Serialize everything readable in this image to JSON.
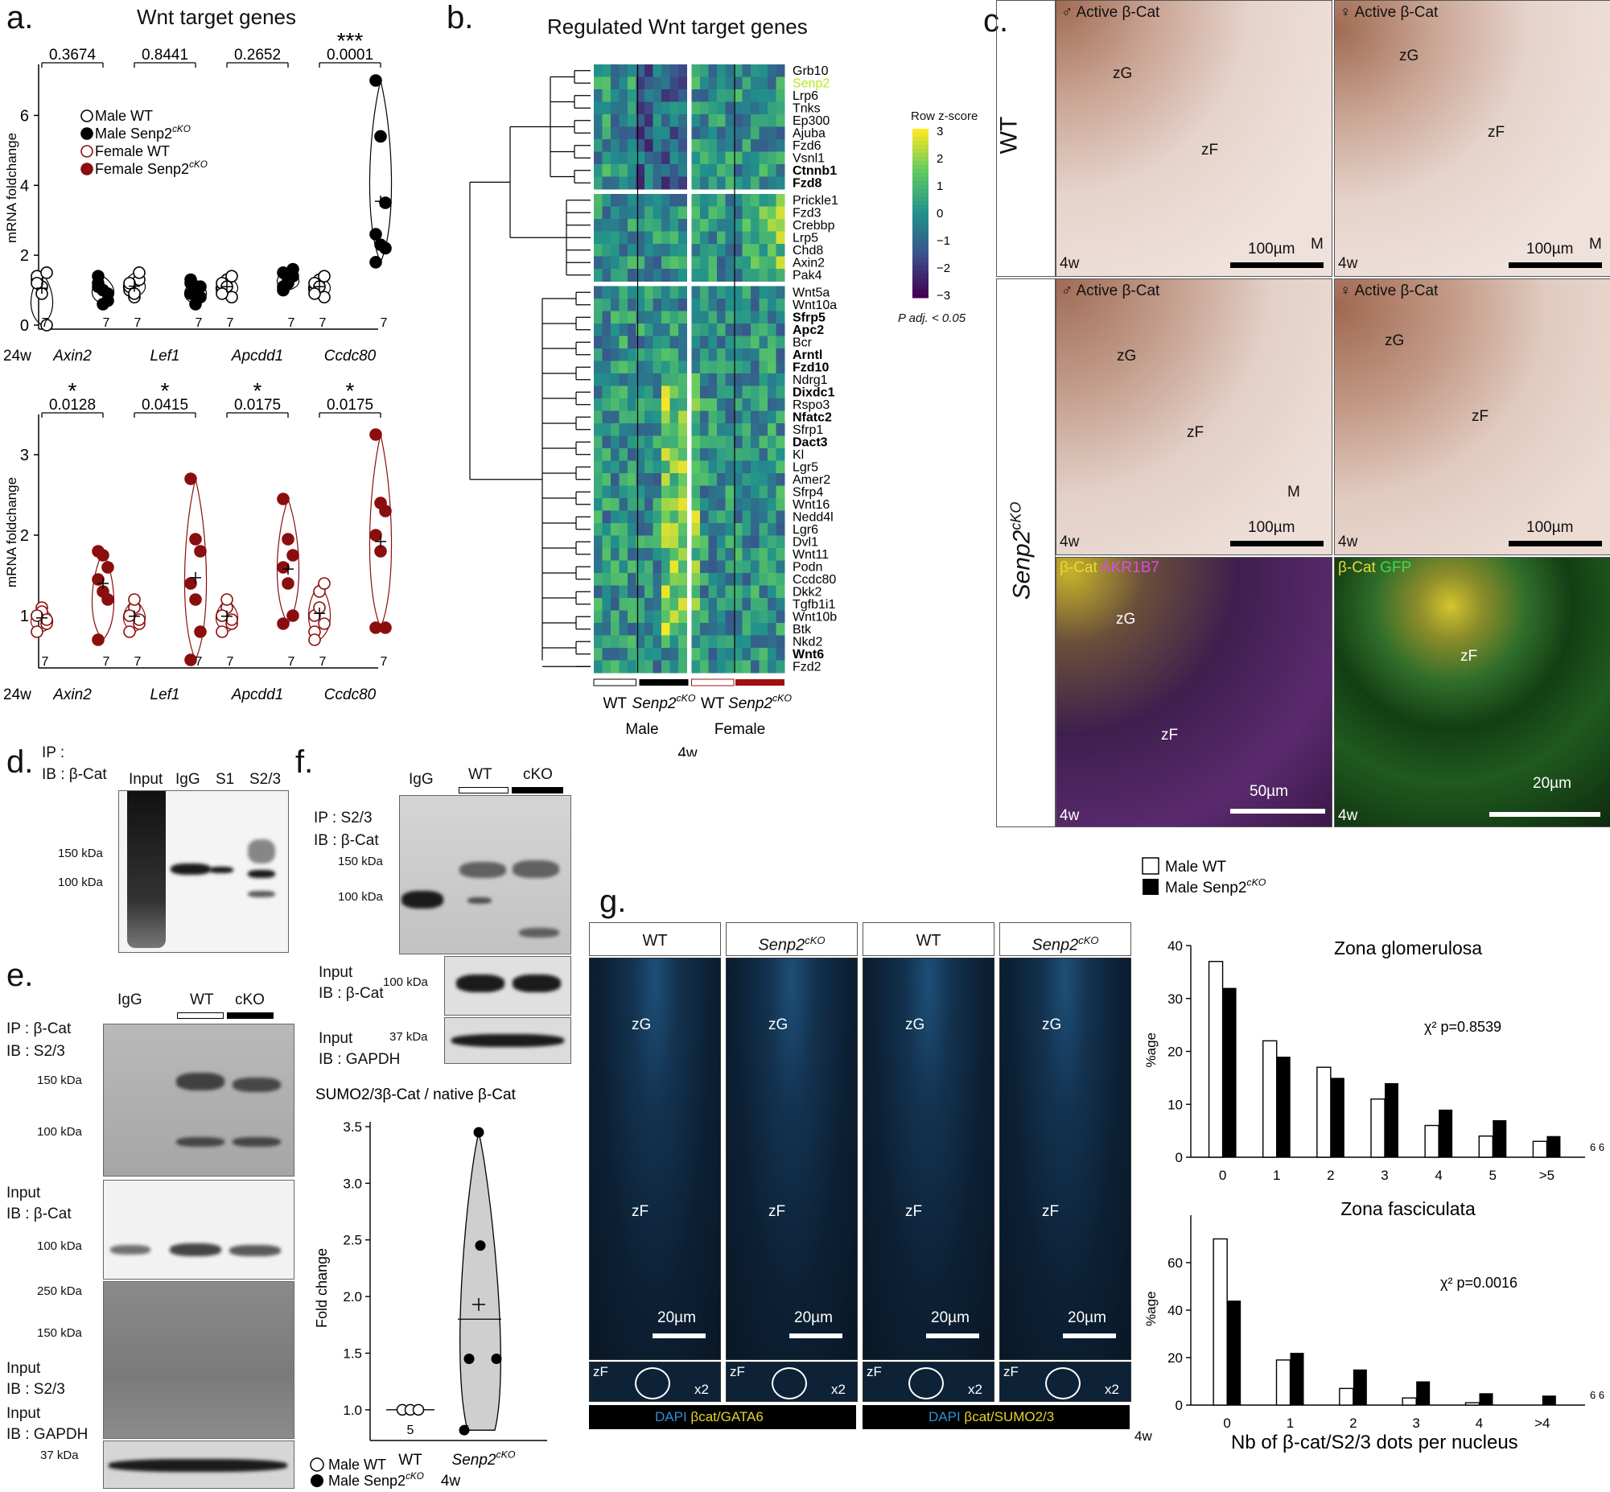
{
  "panel_labels": {
    "a": "a.",
    "b": "b.",
    "c": "c.",
    "d": "d.",
    "e": "e.",
    "f": "f.",
    "g": "g."
  },
  "panel_a": {
    "title": "Wnt target genes",
    "ylabel": "mRNA foldchange",
    "age": "24w",
    "legend": [
      "Male WT",
      "Male Senp2cKO",
      "Female WT",
      "Female Senp2cKO"
    ],
    "legend_main": [
      "Male WT",
      "Male Senp2",
      "Female WT",
      "Female Senp2"
    ],
    "legend_sup": [
      "",
      "cKO",
      "",
      "cKO"
    ],
    "genes": [
      "Axin2",
      "Lef1",
      "Apcdd1",
      "Ccdc80"
    ],
    "n": "7",
    "colors": {
      "male": "#000000",
      "female": "#8b0e0e"
    },
    "chart_data": [
      {
        "type": "scatter",
        "title": "Wnt target genes",
        "ylabel": "mRNA foldchange",
        "ylim": [
          0,
          7
        ],
        "yticks": [
          0,
          2,
          4,
          6
        ],
        "categories": [
          "Axin2",
          "Lef1",
          "Apcdd1",
          "Ccdc80"
        ],
        "pvalues": [
          "0.3674",
          "0.8441",
          "0.2652",
          "0.0001"
        ],
        "stars": [
          "",
          "",
          "",
          "***"
        ],
        "series": [
          {
            "name": "Male WT",
            "values": [
              [
                1.3,
                1.1,
                0.0,
                1.4,
                0.9,
                1.5,
                1.2
              ],
              [
                1.0,
                0.8,
                1.3,
                1.1,
                0.9,
                1.5,
                1.2
              ],
              [
                1.0,
                1.3,
                0.8,
                1.2,
                1.1,
                1.4,
                0.9
              ],
              [
                1.0,
                1.3,
                0.8,
                1.2,
                1.1,
                1.4,
                0.9
              ]
            ]
          },
          {
            "name": "Male Senp2cKO",
            "values": [
              [
                1.4,
                1.0,
                0.7,
                1.2,
                0.6,
                0.9,
                1.1
              ],
              [
                1.2,
                1.0,
                0.8,
                1.3,
                0.6,
                1.1,
                0.9
              ],
              [
                1.5,
                1.3,
                1.6,
                1.1,
                1.2,
                1.4,
                1.0
              ],
              [
                7.0,
                5.4,
                3.5,
                2.6,
                2.3,
                2.2,
                1.8
              ]
            ]
          }
        ]
      },
      {
        "type": "scatter",
        "ylabel": "mRNA foldchange",
        "ylim": [
          0.4,
          3.3
        ],
        "yticks": [
          1,
          2,
          3
        ],
        "categories": [
          "Axin2",
          "Lef1",
          "Apcdd1",
          "Ccdc80"
        ],
        "pvalues": [
          "0.0128",
          "0.0415",
          "0.0175",
          "0.0175"
        ],
        "stars": [
          "*",
          "*",
          "*",
          "*"
        ],
        "series": [
          {
            "name": "Female WT",
            "values": [
              [
                1.0,
                1.1,
                0.9,
                0.8,
                1.05,
                0.95,
                1.0
              ],
              [
                1.0,
                1.1,
                0.9,
                0.8,
                1.2,
                0.95,
                1.0
              ],
              [
                1.0,
                1.1,
                0.9,
                0.8,
                1.2,
                0.95,
                1.0
              ],
              [
                1.0,
                1.3,
                0.9,
                0.8,
                1.1,
                1.4,
                0.7
              ]
            ]
          },
          {
            "name": "Female Senp2cKO",
            "values": [
              [
                1.8,
                1.75,
                1.6,
                1.45,
                1.3,
                1.2,
                0.7
              ],
              [
                2.7,
                1.95,
                1.8,
                1.4,
                1.2,
                0.8,
                0.45
              ],
              [
                2.45,
                1.95,
                1.75,
                1.6,
                1.4,
                1.0,
                0.9
              ],
              [
                3.25,
                2.4,
                2.3,
                2.0,
                1.8,
                0.85,
                0.85
              ]
            ]
          }
        ]
      }
    ]
  },
  "panel_b": {
    "title": "Regulated Wnt target genes",
    "colorbar_title": "Row z-score",
    "colorbar_ticks": [
      "3",
      "2",
      "1",
      "0",
      "−1",
      "−2",
      "−3"
    ],
    "padj": "P adj. < 0.05",
    "genes": [
      "Grb10",
      "Senp2",
      "Lrp6",
      "Tnks",
      "Ep300",
      "Ajuba",
      "Fzd6",
      "Vsnl1",
      "Ctnnb1",
      "Fzd8",
      "Prickle1",
      "Fzd3",
      "Crebbp",
      "Lrp5",
      "Chd8",
      "Axin2",
      "Pak4",
      "Wnt5a",
      "Wnt10a",
      "Sfrp5",
      "Apc2",
      "Bcr",
      "Arntl",
      "Fzd10",
      "Ndrg1",
      "Dixdc1",
      "Rspo3",
      "Nfatc2",
      "Sfrp1",
      "Dact3",
      "Kl",
      "Lgr5",
      "Amer2",
      "Sfrp4",
      "Wnt16",
      "Nedd4l",
      "Lgr6",
      "Dvl1",
      "Wnt11",
      "Podn",
      "Ccdc80",
      "Dkk2",
      "Tgfb1i1",
      "Wnt10b",
      "Btk",
      "Nkd2",
      "Wnt6",
      "Fzd2"
    ],
    "bold_genes": [
      "Ctnnb1",
      "Fzd8",
      "Sfrp5",
      "Apc2",
      "Arntl",
      "Fzd10",
      "Dixdc1",
      "Nfatc2",
      "Dact3",
      "Wnt6"
    ],
    "highlight_gene": "Senp2",
    "highlight_color": "#b5e61d",
    "groups": [
      "WT",
      "Senp2",
      "WT",
      "Senp2"
    ],
    "group_sup": "cKO",
    "sex": [
      "Male",
      "Female"
    ],
    "age": "4w"
  },
  "panel_c": {
    "tiles": [
      {
        "sex": "♂",
        "stain": "Active β-Cat",
        "age": "4w",
        "scale": "100µm",
        "labels": [
          "zG",
          "zF",
          "M"
        ]
      },
      {
        "sex": "♀",
        "stain": "Active β-Cat",
        "age": "4w",
        "scale": "100µm",
        "labels": [
          "zG",
          "zF",
          "M"
        ]
      },
      {
        "sex": "♂",
        "stain": "Active β-Cat",
        "age": "4w",
        "scale": "100µm",
        "labels": [
          "zG",
          "zF",
          "M"
        ]
      },
      {
        "sex": "♀",
        "stain": "Active β-Cat",
        "age": "4w",
        "scale": "100µm",
        "labels": [
          "zG",
          "zF"
        ]
      },
      {
        "stain1": "β-Cat",
        "stain2": "AKR1B7",
        "age": "4w",
        "scale": "50µm",
        "labels": [
          "zG",
          "zF"
        ]
      },
      {
        "stain1": "β-Cat",
        "stain2": "GFP",
        "age": "4w",
        "scale": "20µm",
        "labels": [
          "zF"
        ]
      }
    ],
    "row_wt": "WT",
    "row_cko": "Senp2",
    "row_cko_sup": "cKO"
  },
  "panel_d": {
    "ip": "IP :",
    "ib": "IB : β-Cat",
    "lanes": [
      "Input",
      "IgG",
      "S1",
      "S2/3"
    ],
    "markers": [
      "150 kDa",
      "100 kDa"
    ]
  },
  "panel_e": {
    "lanes": [
      "IgG",
      "WT",
      "cKO"
    ],
    "ip": "IP : β-Cat",
    "ib": "IB : S2/3",
    "markers1": [
      "150 kDa",
      "100 kDa"
    ],
    "input1": "Input",
    "ib1": "IB : β-Cat",
    "marker2": "100 kDa",
    "markers3": [
      "250 kDa",
      "150 kDa"
    ],
    "input3": "Input",
    "ib3": "IB : S2/3",
    "input4": "Input",
    "ib4": "IB : GAPDH",
    "marker4": "37 kDa"
  },
  "panel_f": {
    "lanes": [
      "IgG",
      "WT",
      "cKO"
    ],
    "ip": "IP : S2/3",
    "ib": "IB : β-Cat",
    "markers1": [
      "150 kDa",
      "100 kDa"
    ],
    "input1": "Input",
    "ib1": "IB : β-Cat",
    "marker2": "100 kDa",
    "input2": "Input",
    "ib2": "IB : GAPDH",
    "marker3": "37 kDa",
    "legend": [
      "Male WT",
      "Male Senp2cKO"
    ],
    "legend_main": [
      "Male WT",
      "Male Senp2"
    ],
    "legend_sup": "cKO",
    "chart_data": {
      "type": "scatter",
      "title": "SUMO2/3β-Cat / native β-Cat",
      "ylabel": "Fold change",
      "ylim": [
        0.8,
        3.5
      ],
      "yticks": [
        1.0,
        1.5,
        2.0,
        2.5,
        3.0,
        3.5
      ],
      "categories": [
        "WT",
        "Senp2cKO"
      ],
      "xlabel": "4w",
      "n": [
        "5",
        "5"
      ],
      "series": [
        {
          "name": "Male WT",
          "values": [
            1.0,
            1.0,
            1.0,
            1.0,
            1.0
          ]
        },
        {
          "name": "Male Senp2cKO",
          "values": [
            3.45,
            2.45,
            1.45,
            1.45,
            0.82
          ]
        }
      ],
      "mean": [
        1.0,
        1.93
      ],
      "median": [
        1.0,
        1.8
      ]
    }
  },
  "panel_g": {
    "headers": [
      "WT",
      "Senp2",
      "WT",
      "Senp2"
    ],
    "header_sup": "cKO",
    "field_labels": [
      "zG",
      "zF"
    ],
    "scale": "20µm",
    "inset_label": "zF",
    "zoom": "x2",
    "footer": [
      {
        "dapi": "DAPI",
        "stain": "βcat/GATA6"
      },
      {
        "dapi": "DAPI",
        "stain": "βcat/SUMO2/3"
      }
    ],
    "legend": [
      "Male WT",
      "Male Senp2cKO"
    ],
    "legend_main": [
      "Male WT",
      "Male Senp2"
    ],
    "legend_sup": "cKO",
    "age": "4w",
    "xlabel": "Nb of β-cat/S2/3 dots per nucleus",
    "chart_data": [
      {
        "type": "bar",
        "title": "Zona glomerulosa",
        "ylabel": "%age",
        "ylim": [
          0,
          40
        ],
        "yticks": [
          0,
          10,
          20,
          30,
          40
        ],
        "categories": [
          "0",
          "1",
          "2",
          "3",
          "4",
          "5",
          ">5"
        ],
        "series": [
          {
            "name": "Male WT",
            "values": [
              37,
              22,
              17,
              11,
              6,
              4,
              3
            ]
          },
          {
            "name": "Male Senp2cKO",
            "values": [
              32,
              19,
              15,
              14,
              9,
              7,
              4
            ]
          }
        ],
        "annotation": "χ² p=0.8539",
        "n": "6 6"
      },
      {
        "type": "bar",
        "title": "Zona fasciculata",
        "ylabel": "%age",
        "ylim": [
          0,
          80
        ],
        "yticks": [
          0,
          20,
          40,
          60
        ],
        "categories": [
          "0",
          "1",
          "2",
          "3",
          "4",
          ">4"
        ],
        "series": [
          {
            "name": "Male WT",
            "values": [
              70,
              19,
              7,
              3,
              1,
              0
            ]
          },
          {
            "name": "Male Senp2cKO",
            "values": [
              44,
              22,
              15,
              10,
              5,
              4
            ]
          }
        ],
        "annotation": "χ² p=0.0016",
        "n": "6 6"
      }
    ]
  }
}
